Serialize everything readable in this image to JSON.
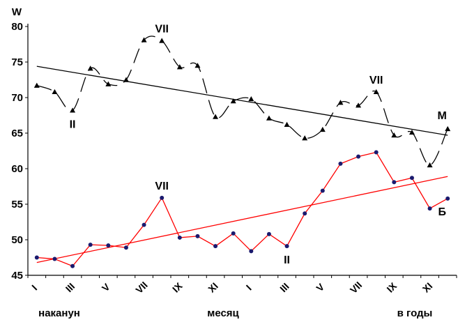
{
  "chart_data": {
    "type": "line",
    "ylabel": "W",
    "ylim": [
      45,
      80
    ],
    "yticks": [
      "45",
      "50",
      "55",
      "60",
      "65",
      "70",
      "75",
      "80"
    ],
    "xticks": [
      "I",
      "III",
      "V",
      "VII",
      "IX",
      "XI",
      "I",
      "III",
      "V",
      "VII",
      "IX",
      "XI"
    ],
    "group_labels": [
      "наканун",
      "месяц",
      "в годы"
    ],
    "grid": false,
    "series": [
      {
        "name": "М",
        "color": "#000000",
        "marker": "triangle",
        "values": [
          71.7,
          70.8,
          68.2,
          74.1,
          71.9,
          72.5,
          78.1,
          78.0,
          74.3,
          74.5,
          67.3,
          69.5,
          69.8,
          67.1,
          66.2,
          64.3,
          65.5,
          69.3,
          68.9,
          70.8,
          64.7,
          65.1,
          60.5,
          65.6
        ],
        "trend": [
          74.4,
          64.7
        ]
      },
      {
        "name": "Б",
        "color": "#ff0000",
        "marker": "circle",
        "values": [
          47.5,
          47.3,
          46.3,
          49.3,
          49.2,
          48.9,
          52.1,
          55.9,
          50.3,
          50.5,
          49.1,
          50.9,
          48.4,
          50.8,
          49.1,
          53.7,
          56.9,
          60.7,
          61.7,
          62.3,
          58.1,
          58.7,
          54.4,
          55.8
        ],
        "trend": [
          46.8,
          58.9
        ]
      }
    ],
    "annotations": [
      {
        "text": "VII",
        "series": 0,
        "index": 7
      },
      {
        "text": "II",
        "series": 0,
        "index": 2
      },
      {
        "text": "VII",
        "series": 0,
        "index": 19
      },
      {
        "text": "VII",
        "series": 1,
        "index": 7
      },
      {
        "text": "II",
        "series": 1,
        "index": 14
      }
    ]
  }
}
